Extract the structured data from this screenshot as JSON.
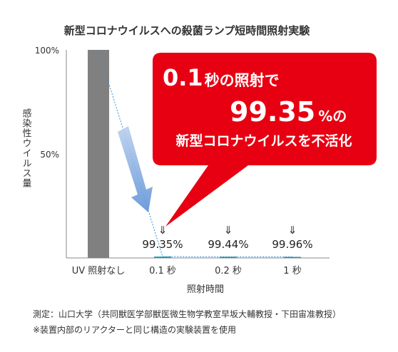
{
  "chart_data": {
    "type": "bar",
    "title": "新型コロナウイルスへの殺菌ランプ短時間照射実験",
    "ylabel": "感染性ウイルス量",
    "xlabel": "照射時間",
    "ylim": [
      0,
      100
    ],
    "yticks": [
      "100%",
      "50%"
    ],
    "categories": [
      "UV 照射なし",
      "0.1 秒",
      "0.2 秒",
      "1 秒"
    ],
    "values": [
      100,
      0.65,
      0.56,
      0.04
    ],
    "value_labels": [
      "",
      "99.35%",
      "99.44%",
      "99.96%"
    ],
    "arrow_glyph": "⇓",
    "callout": {
      "line1_num": "0.1",
      "line1_text": "秒の照射で",
      "line2_num": "99.35",
      "line2_text": "%の",
      "line3_text": "新型コロナウイルスを不活化"
    },
    "colors": {
      "bar": "#808080",
      "small_bar": "#1a9bb0",
      "callout": "#e60012",
      "arrow": "#7aa7dd",
      "trend": "#3a8fd0"
    }
  },
  "notes": [
    "測定：山口大学（共同獣医学部獣医微生物学教室早坂大輔教授・下田宙准教授）",
    "※装置内部のリアクターと同じ構造の実験装置を使用"
  ]
}
